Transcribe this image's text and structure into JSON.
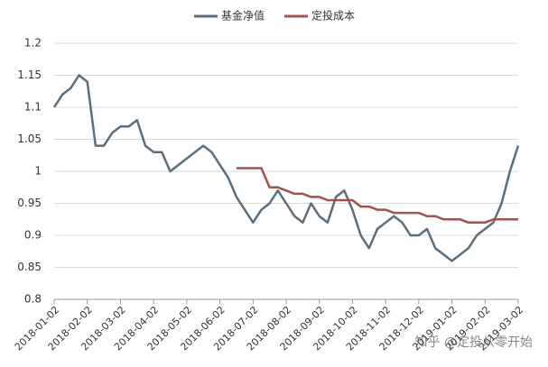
{
  "chart_data": {
    "type": "line",
    "categories": [
      "2018-01-02",
      null,
      null,
      null,
      "2018-02-02",
      null,
      null,
      null,
      "2018-03-02",
      null,
      null,
      null,
      "2018-04-02",
      null,
      null,
      null,
      "2018-05-02",
      null,
      null,
      null,
      "2018-06-02",
      null,
      null,
      null,
      "2018-07-02",
      null,
      null,
      null,
      "2018-08-02",
      null,
      null,
      null,
      "2018-09-02",
      null,
      null,
      null,
      "2018-10-02",
      null,
      null,
      null,
      "2018-11-02",
      null,
      null,
      null,
      "2018-12-02",
      null,
      null,
      null,
      "2019-01-02",
      null,
      null,
      null,
      "2019-02-02",
      null,
      null,
      null,
      "2019-03-02"
    ],
    "series": [
      {
        "name": "基金净值",
        "color": "#5b6e7c",
        "values": [
          1.1,
          1.12,
          1.13,
          1.15,
          1.14,
          1.04,
          1.04,
          1.06,
          1.07,
          1.07,
          1.08,
          1.04,
          1.03,
          1.03,
          1.0,
          1.01,
          1.02,
          1.03,
          1.04,
          1.03,
          1.01,
          0.99,
          0.96,
          0.94,
          0.92,
          0.94,
          0.95,
          0.97,
          0.95,
          0.93,
          0.92,
          0.95,
          0.93,
          0.92,
          0.96,
          0.97,
          0.94,
          0.9,
          0.88,
          0.91,
          0.92,
          0.93,
          0.92,
          0.9,
          0.9,
          0.91,
          0.88,
          0.87,
          0.86,
          0.87,
          0.88,
          0.9,
          0.91,
          0.92,
          0.95,
          1.0,
          1.04
        ]
      },
      {
        "name": "定投成本",
        "color": "#a0524f",
        "values": [
          null,
          null,
          null,
          null,
          null,
          null,
          null,
          null,
          null,
          null,
          null,
          null,
          null,
          null,
          null,
          null,
          null,
          null,
          null,
          null,
          null,
          null,
          1.005,
          1.005,
          1.005,
          1.005,
          0.975,
          0.975,
          0.97,
          0.965,
          0.965,
          0.96,
          0.96,
          0.955,
          0.955,
          0.955,
          0.955,
          0.945,
          0.945,
          0.94,
          0.94,
          0.935,
          0.935,
          0.935,
          0.935,
          0.93,
          0.93,
          0.925,
          0.925,
          0.925,
          0.92,
          0.92,
          0.92,
          0.925,
          0.925,
          0.925,
          0.925
        ]
      }
    ],
    "ylim": [
      0.8,
      1.2
    ],
    "yticks": [
      0.8,
      0.85,
      0.9,
      0.95,
      1,
      1.05,
      1.1,
      1.15,
      1.2
    ],
    "grid": true,
    "legend": "top",
    "watermark": "知乎 @定投从零开始"
  }
}
